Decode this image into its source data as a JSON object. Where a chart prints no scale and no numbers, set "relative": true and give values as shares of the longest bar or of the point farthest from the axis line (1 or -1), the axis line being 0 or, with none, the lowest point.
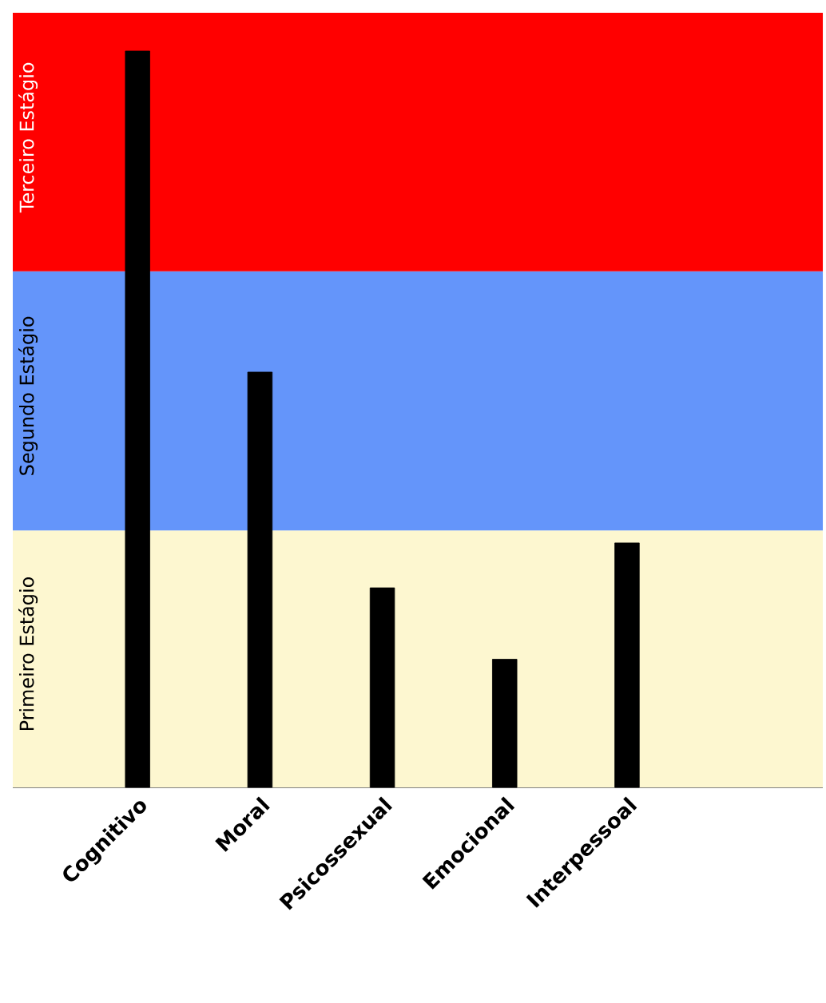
{
  "chart_data": {
    "type": "bar",
    "relative": true,
    "categories": [
      "Cognitivo",
      "Moral",
      "Psicossexual",
      "Emocional",
      "Interpessoal"
    ],
    "values": [
      1,
      0.564,
      0.271,
      0.174,
      0.332
    ],
    "color": "#000000",
    "bands": [
      {
        "axis": "y",
        "from": 0,
        "to": 0.349,
        "label": "Primeiro Estágio",
        "color": "#fdf7d0"
      },
      {
        "axis": "y",
        "from": 0.349,
        "to": 0.701,
        "label": "Segundo Estágio",
        "color": "#6495fa"
      },
      {
        "axis": "y",
        "from": 0.701,
        "to": 1.052,
        "label": "Terceiro Estágio",
        "color": "#ff0000"
      }
    ]
  }
}
